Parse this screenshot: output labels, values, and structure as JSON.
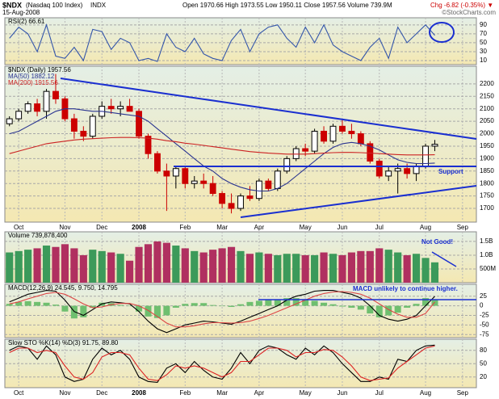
{
  "header": {
    "symbol": "$NDX",
    "name": "(Nasdaq 100 Index)",
    "exchange": "INDX",
    "date": "15-Aug-2008",
    "quote": "Open 1970.66 High 1973.55 Low 1950.11 Close 1957.56 Volume 739.9M",
    "change": "Chg -6.82 (-0.35%) ▼",
    "credit": "©StockCharts.com"
  },
  "chart_data": [
    {
      "type": "line",
      "legend": "RSI(2) 66.61",
      "ylim": [
        1,
        106
      ],
      "yticks": [
        10,
        30,
        50,
        70,
        90
      ],
      "series": [
        {
          "color": "#3355aa",
          "values": [
            60,
            85,
            70,
            30,
            90,
            20,
            15,
            40,
            10,
            80,
            75,
            35,
            60,
            50,
            10,
            15,
            8,
            70,
            40,
            30,
            60,
            25,
            15,
            10,
            55,
            80,
            30,
            70,
            85,
            90,
            60,
            40,
            85,
            50,
            90,
            45,
            30,
            20,
            10,
            40,
            60,
            15,
            85,
            50,
            70,
            90,
            66.61,
            null,
            null,
            null,
            null
          ]
        }
      ]
    },
    {
      "type": "candlestick",
      "legend": "$NDX (Daily) 1957.56",
      "annotation": "Support",
      "categories": [
        null,
        "Oct",
        null,
        null,
        null,
        null,
        "Nov",
        null,
        null,
        null,
        "Dec",
        null,
        null,
        null,
        "2008",
        null,
        null,
        null,
        null,
        "Feb",
        null,
        null,
        null,
        "Mar",
        null,
        null,
        null,
        "Apr",
        null,
        null,
        null,
        null,
        "May",
        null,
        null,
        null,
        "Jun",
        null,
        null,
        null,
        "Jul",
        null,
        null,
        null,
        null,
        "Aug",
        null,
        null,
        null,
        "Sep",
        null
      ],
      "open": [
        2040,
        2060,
        2090,
        2120,
        2090,
        2170,
        2140,
        2060,
        2010,
        1990,
        2070,
        2110,
        2100,
        2110,
        2090,
        1990,
        1920,
        1850,
        1830,
        1860,
        1800,
        1810,
        1800,
        1760,
        1720,
        1700,
        1750,
        1740,
        1810,
        1780,
        1850,
        1900,
        1940,
        1930,
        2010,
        1970,
        2030,
        2010,
        2000,
        1960,
        1890,
        1830,
        1850,
        1860,
        1840,
        1870,
        1950,
        null,
        null,
        null,
        null
      ],
      "high": [
        2070,
        2100,
        2130,
        2140,
        2180,
        2240,
        2150,
        2080,
        2030,
        2080,
        2130,
        2140,
        2130,
        2140,
        2100,
        2000,
        1930,
        1880,
        1870,
        1870,
        1830,
        1840,
        1830,
        1770,
        1760,
        1760,
        1790,
        1820,
        1820,
        1860,
        1910,
        1950,
        1960,
        2020,
        2030,
        2040,
        2060,
        2040,
        2010,
        1970,
        1900,
        1870,
        1880,
        1880,
        1880,
        1960,
        1975,
        null,
        null,
        null,
        null
      ],
      "low": [
        2030,
        2050,
        2080,
        2070,
        2060,
        2120,
        2050,
        1980,
        1970,
        1980,
        2060,
        2080,
        2070,
        2090,
        1980,
        1900,
        1840,
        1690,
        1780,
        1780,
        1780,
        1780,
        1750,
        1700,
        1680,
        1690,
        1730,
        1730,
        1770,
        1770,
        1840,
        1890,
        1910,
        1920,
        1960,
        1960,
        2000,
        1980,
        1950,
        1880,
        1820,
        1810,
        1760,
        1820,
        1810,
        1860,
        1930,
        null,
        null,
        null,
        null
      ],
      "close": [
        2060,
        2090,
        2120,
        2090,
        2170,
        2140,
        2060,
        2010,
        1990,
        2070,
        2110,
        2100,
        2110,
        2090,
        1990,
        1920,
        1850,
        1830,
        1860,
        1800,
        1810,
        1800,
        1760,
        1720,
        1700,
        1750,
        1740,
        1810,
        1780,
        1850,
        1900,
        1940,
        1930,
        2010,
        1970,
        2030,
        2010,
        2000,
        1960,
        1890,
        1830,
        1850,
        1860,
        1840,
        1870,
        1950,
        1957.56,
        null,
        null,
        null,
        null
      ],
      "up_color": "#000000",
      "down_color": "#cc0000",
      "series": [
        {
          "name": "MA(50) 1882.12",
          "color": "#2a3490",
          "values": [
            2000,
            2010,
            2030,
            2050,
            2070,
            2090,
            2100,
            2100,
            2095,
            2090,
            2090,
            2085,
            2080,
            2075,
            2070,
            2050,
            2020,
            1990,
            1960,
            1930,
            1900,
            1870,
            1850,
            1820,
            1800,
            1785,
            1775,
            1770,
            1770,
            1780,
            1800,
            1830,
            1860,
            1890,
            1920,
            1945,
            1960,
            1965,
            1960,
            1950,
            1935,
            1915,
            1895,
            1885,
            1880,
            1880,
            1882.12,
            null,
            null,
            null,
            null
          ]
        },
        {
          "name": "MA(200) 1915.56",
          "color": "#cc2222",
          "values": [
            1920,
            1930,
            1940,
            1950,
            1960,
            1965,
            1970,
            1975,
            1978,
            1980,
            1982,
            1984,
            1985,
            1985,
            1984,
            1982,
            1978,
            1972,
            1968,
            1962,
            1958,
            1953,
            1948,
            1943,
            1938,
            1933,
            1928,
            1925,
            1922,
            1920,
            1918,
            1918,
            1918,
            1920,
            1922,
            1924,
            1925,
            1925,
            1924,
            1922,
            1920,
            1918,
            1916,
            1915,
            1915,
            1915,
            1915.56,
            null,
            null,
            null,
            null
          ]
        }
      ],
      "ylim": [
        1645,
        2271
      ],
      "yticks": [
        1700,
        1750,
        1800,
        1850,
        1900,
        1950,
        2000,
        2050,
        2100,
        2150,
        2200
      ]
    },
    {
      "type": "bar",
      "legend": "Volume 739,878,400",
      "annotation": "Not Good!",
      "up_color": "#3c9a5a",
      "down_color": "#b03060",
      "values": [
        1100000000,
        1150000000,
        1200000000,
        1250000000,
        1350000000,
        1300000000,
        1400000000,
        1250000000,
        1000000000,
        1200000000,
        1150000000,
        1100000000,
        1050000000,
        800000000,
        1300000000,
        1400000000,
        1500000000,
        1450000000,
        1350000000,
        1250000000,
        1150000000,
        1100000000,
        1200000000,
        1250000000,
        1300000000,
        1150000000,
        1050000000,
        1100000000,
        1050000000,
        1000000000,
        1050000000,
        1050000000,
        1000000000,
        1000000000,
        1100000000,
        1050000000,
        1000000000,
        1100000000,
        1150000000,
        1150000000,
        1250000000,
        1200000000,
        1100000000,
        1000000000,
        1050000000,
        900000000,
        739878400,
        null,
        null,
        null,
        null
      ],
      "ylim": [
        0,
        1850000000
      ],
      "yticks": [
        {
          "value": 500000000,
          "label": "500M"
        },
        {
          "value": 1000000000,
          "label": "1.0B"
        },
        {
          "value": 1500000000,
          "label": "1.5B"
        }
      ]
    },
    {
      "type": "line",
      "legend": "MACD(12,26,9) 24.545, 9.750, 14.795",
      "annotation": "MACD unlikely to continue higher.",
      "ylim": [
        -83,
        56
      ],
      "yticks": [
        -75,
        -50,
        -25,
        0,
        25
      ],
      "series": [
        {
          "color": "#6fbf6f",
          "style": "histogram",
          "values": [
            5,
            10,
            12,
            10,
            8,
            3,
            -15,
            -33,
            -30,
            -5,
            8,
            7,
            2,
            -1,
            -15,
            -28,
            -32,
            -25,
            -5,
            5,
            7,
            7,
            2,
            -1,
            -3,
            4,
            10,
            13,
            15,
            15,
            20,
            20,
            15,
            13,
            8,
            4,
            -2,
            -5,
            -10,
            -20,
            -30,
            -25,
            -18,
            -5,
            5,
            20,
            14.795,
            null,
            null,
            null,
            null
          ]
        },
        {
          "color": "#000000",
          "values": [
            10,
            20,
            30,
            35,
            40,
            38,
            15,
            -15,
            -25,
            -10,
            5,
            10,
            8,
            5,
            -15,
            -40,
            -60,
            -70,
            -60,
            -50,
            -45,
            -40,
            -42,
            -45,
            -48,
            -40,
            -30,
            -20,
            -10,
            0,
            15,
            25,
            30,
            38,
            40,
            40,
            35,
            30,
            20,
            0,
            -25,
            -35,
            -40,
            -35,
            -25,
            0,
            24.545,
            null,
            null,
            null,
            null
          ]
        },
        {
          "color": "#dd4444",
          "values": [
            5,
            10,
            18,
            25,
            32,
            35,
            30,
            18,
            5,
            -5,
            -3,
            3,
            6,
            6,
            0,
            -12,
            -28,
            -45,
            -55,
            -55,
            -52,
            -47,
            -44,
            -44,
            -45,
            -44,
            -40,
            -33,
            -25,
            -15,
            -5,
            5,
            15,
            25,
            32,
            36,
            37,
            35,
            30,
            20,
            5,
            -10,
            -22,
            -30,
            -30,
            -20,
            9.75,
            null,
            null,
            null,
            null
          ]
        }
      ]
    },
    {
      "type": "line",
      "legend": "Slow STO %K(14) %D(3) 91.75, 89.80",
      "categories": [
        null,
        "Oct",
        null,
        null,
        null,
        null,
        "Nov",
        null,
        null,
        null,
        "Dec",
        null,
        null,
        null,
        "2008",
        null,
        null,
        null,
        null,
        "Feb",
        null,
        null,
        null,
        "Mar",
        null,
        null,
        null,
        "Apr",
        null,
        null,
        null,
        null,
        "May",
        null,
        null,
        null,
        "Jun",
        null,
        null,
        null,
        "Jul",
        null,
        null,
        null,
        null,
        "Aug",
        null,
        null,
        null,
        "Sep",
        null
      ],
      "ylim": [
        -4,
        105
      ],
      "yticks": [
        20,
        50,
        80
      ],
      "series": [
        {
          "color": "#000000",
          "values": [
            80,
            90,
            85,
            60,
            90,
            70,
            20,
            10,
            15,
            60,
            85,
            70,
            80,
            60,
            20,
            10,
            8,
            40,
            50,
            30,
            55,
            35,
            20,
            15,
            40,
            75,
            50,
            80,
            90,
            85,
            70,
            60,
            85,
            70,
            90,
            75,
            50,
            30,
            10,
            10,
            20,
            15,
            60,
            55,
            80,
            90,
            91.75,
            null,
            null,
            null,
            null
          ]
        },
        {
          "color": "#dd2222",
          "values": [
            75,
            85,
            85,
            75,
            80,
            75,
            45,
            20,
            15,
            30,
            65,
            75,
            75,
            70,
            40,
            15,
            12,
            25,
            45,
            40,
            45,
            40,
            30,
            20,
            30,
            55,
            55,
            70,
            85,
            85,
            80,
            65,
            75,
            75,
            82,
            80,
            65,
            45,
            20,
            12,
            15,
            18,
            40,
            55,
            70,
            85,
            89.8,
            null,
            null,
            null,
            null
          ]
        }
      ]
    }
  ]
}
